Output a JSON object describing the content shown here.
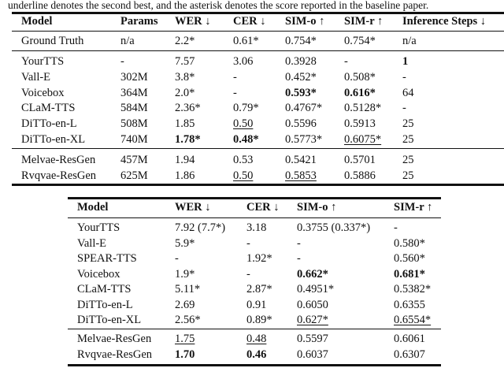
{
  "caption": "underline denotes the second best, and the asterisk denotes the score reported in the baseline paper.",
  "table1": {
    "headers": [
      "Model",
      "Params",
      "WER ↓",
      "CER ↓",
      "SIM-o ↑",
      "SIM-r ↑",
      "Inference Steps ↓"
    ],
    "rows": [
      [
        {
          "t": "Ground Truth"
        },
        {
          "t": "n/a"
        },
        {
          "t": "2.2*"
        },
        {
          "t": "0.61*"
        },
        {
          "t": "0.754*"
        },
        {
          "t": "0.754*"
        },
        {
          "t": "n/a"
        }
      ],
      [
        {
          "t": "YourTTS"
        },
        {
          "t": "-"
        },
        {
          "t": "7.57"
        },
        {
          "t": "3.06"
        },
        {
          "t": "0.3928"
        },
        {
          "t": "-"
        },
        {
          "t": "1",
          "b": true
        }
      ],
      [
        {
          "t": "Vall-E"
        },
        {
          "t": "302M"
        },
        {
          "t": "3.8*"
        },
        {
          "t": "-"
        },
        {
          "t": "0.452*"
        },
        {
          "t": "0.508*"
        },
        {
          "t": "-"
        }
      ],
      [
        {
          "t": "Voicebox"
        },
        {
          "t": "364M"
        },
        {
          "t": "2.0*"
        },
        {
          "t": "-"
        },
        {
          "t": "0.593*",
          "b": true
        },
        {
          "t": "0.616*",
          "b": true
        },
        {
          "t": "64"
        }
      ],
      [
        {
          "t": "CLaM-TTS"
        },
        {
          "t": "584M"
        },
        {
          "t": "2.36*"
        },
        {
          "t": "0.79*"
        },
        {
          "t": "0.4767*"
        },
        {
          "t": "0.5128*"
        },
        {
          "t": "-"
        }
      ],
      [
        {
          "t": "DiTTo-en-L"
        },
        {
          "t": "508M"
        },
        {
          "t": "1.85"
        },
        {
          "t": "0.50",
          "u": true
        },
        {
          "t": "0.5596"
        },
        {
          "t": "0.5913"
        },
        {
          "t": "25"
        }
      ],
      [
        {
          "t": "DiTTo-en-XL"
        },
        {
          "t": "740M"
        },
        {
          "t": "1.78*",
          "b": true
        },
        {
          "t": "0.48*",
          "b": true
        },
        {
          "t": "0.5773*"
        },
        {
          "t": "0.6075*",
          "u": true
        },
        {
          "t": "25"
        }
      ],
      [
        {
          "t": "Melvae-ResGen"
        },
        {
          "t": "457M"
        },
        {
          "t": "1.94"
        },
        {
          "t": "0.53"
        },
        {
          "t": "0.5421"
        },
        {
          "t": "0.5701"
        },
        {
          "t": "25"
        }
      ],
      [
        {
          "t": "Rvqvae-ResGen"
        },
        {
          "t": "625M"
        },
        {
          "t": "1.86"
        },
        {
          "t": "0.50",
          "u": true
        },
        {
          "t": "0.5853",
          "u": true
        },
        {
          "t": "0.5886"
        },
        {
          "t": "25"
        }
      ]
    ]
  },
  "table2": {
    "headers": [
      "Model",
      "WER ↓",
      "CER ↓",
      "SIM-o ↑",
      "SIM-r ↑"
    ],
    "rows": [
      [
        {
          "t": "YourTTS"
        },
        {
          "t": "7.92 (7.7*)"
        },
        {
          "t": "3.18"
        },
        {
          "t": "0.3755 (0.337*)"
        },
        {
          "t": "-"
        }
      ],
      [
        {
          "t": "Vall-E"
        },
        {
          "t": "5.9*"
        },
        {
          "t": "-"
        },
        {
          "t": "-"
        },
        {
          "t": "0.580*"
        }
      ],
      [
        {
          "t": "SPEAR-TTS"
        },
        {
          "t": "-"
        },
        {
          "t": "1.92*"
        },
        {
          "t": "-"
        },
        {
          "t": "0.560*"
        }
      ],
      [
        {
          "t": "Voicebox"
        },
        {
          "t": "1.9*"
        },
        {
          "t": "-"
        },
        {
          "t": "0.662*",
          "b": true
        },
        {
          "t": "0.681*",
          "b": true
        }
      ],
      [
        {
          "t": "CLaM-TTS"
        },
        {
          "t": "5.11*"
        },
        {
          "t": "2.87*"
        },
        {
          "t": "0.4951*"
        },
        {
          "t": "0.5382*"
        }
      ],
      [
        {
          "t": "DiTTo-en-L"
        },
        {
          "t": "2.69"
        },
        {
          "t": "0.91"
        },
        {
          "t": "0.6050"
        },
        {
          "t": "0.6355"
        }
      ],
      [
        {
          "t": "DiTTo-en-XL"
        },
        {
          "t": "2.56*"
        },
        {
          "t": "0.89*"
        },
        {
          "t": "0.627*",
          "u": true
        },
        {
          "t": "0.6554*",
          "u": true
        }
      ],
      [
        {
          "t": "Melvae-ResGen"
        },
        {
          "t": "1.75",
          "u": true
        },
        {
          "t": "0.48",
          "u": true
        },
        {
          "t": "0.5597"
        },
        {
          "t": "0.6061"
        }
      ],
      [
        {
          "t": "Rvqvae-ResGen"
        },
        {
          "t": "1.70",
          "b": true
        },
        {
          "t": "0.46",
          "b": true
        },
        {
          "t": "0.6037"
        },
        {
          "t": "0.6307"
        }
      ]
    ]
  }
}
